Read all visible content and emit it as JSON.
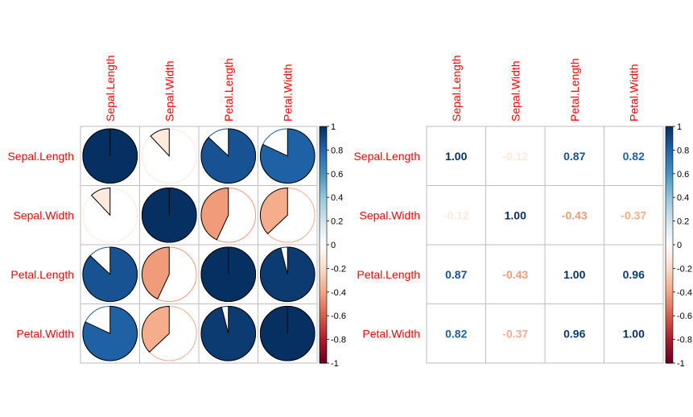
{
  "chart_data": [
    {
      "type": "heatmap",
      "method": "pie",
      "variables": [
        "Sepal.Length",
        "Sepal.Width",
        "Petal.Length",
        "Petal.Width"
      ],
      "matrix": [
        [
          1.0,
          -0.12,
          0.87,
          0.82
        ],
        [
          -0.12,
          1.0,
          -0.43,
          -0.37
        ],
        [
          0.87,
          -0.43,
          1.0,
          0.96
        ],
        [
          0.82,
          -0.37,
          0.96,
          1.0
        ]
      ],
      "colorbar": {
        "range": [
          -1,
          1
        ],
        "ticks": [
          "-1",
          "-0.8",
          "-0.6",
          "-0.4",
          "-0.2",
          "0",
          "0.2",
          "0.4",
          "0.6",
          "0.8",
          "1"
        ]
      },
      "grid": true
    },
    {
      "type": "heatmap",
      "method": "number",
      "variables": [
        "Sepal.Length",
        "Sepal.Width",
        "Petal.Length",
        "Petal.Width"
      ],
      "matrix": [
        [
          1.0,
          -0.12,
          0.87,
          0.82
        ],
        [
          -0.12,
          1.0,
          -0.43,
          -0.37
        ],
        [
          0.87,
          -0.43,
          1.0,
          0.96
        ],
        [
          0.82,
          -0.37,
          0.96,
          1.0
        ]
      ],
      "cell_text": [
        [
          "1.00",
          "-0.12",
          "0.87",
          "0.82"
        ],
        [
          "-0.12",
          "1.00",
          "-0.43",
          "-0.37"
        ],
        [
          "0.87",
          "-0.43",
          "1.00",
          "0.96"
        ],
        [
          "0.82",
          "-0.37",
          "0.96",
          "1.00"
        ]
      ],
      "colorbar": {
        "range": [
          -1,
          1
        ],
        "ticks": [
          "-1",
          "-0.8",
          "-0.6",
          "-0.4",
          "-0.2",
          "0",
          "0.2",
          "0.4",
          "0.6",
          "0.8",
          "1"
        ]
      },
      "grid": true
    }
  ],
  "colors": {
    "label": "#ff0000",
    "grid": "#bebebe",
    "axis_text": "#000000",
    "palette_stops": [
      "#67001F",
      "#B2182B",
      "#D6604D",
      "#F4A582",
      "#FDDBC7",
      "#FFFFFF",
      "#D1E5F0",
      "#92C5DE",
      "#4393C3",
      "#2166AC",
      "#053061"
    ]
  }
}
